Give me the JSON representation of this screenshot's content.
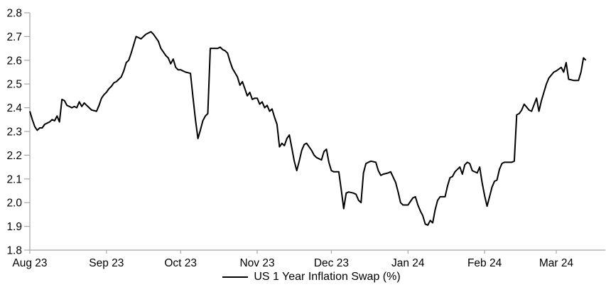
{
  "chart_data": {
    "type": "line",
    "title": "",
    "legend": {
      "position": "bottom",
      "label": "US 1 Year Inflation Swap (%)"
    },
    "x_ticks": [
      "Aug 23",
      "Sep 23",
      "Oct 23",
      "Nov 23",
      "Dec 23",
      "Jan 24",
      "Feb 24",
      "Mar 24"
    ],
    "x_tick_dates": [
      "2023-08-01",
      "2023-09-01",
      "2023-10-01",
      "2023-11-01",
      "2023-12-01",
      "2024-01-01",
      "2024-02-01",
      "2024-03-01"
    ],
    "y_tick_labels": [
      "1.8",
      "1.9",
      "2.0",
      "2.1",
      "2.2",
      "2.3",
      "2.4",
      "2.5",
      "2.6",
      "2.7",
      "2.8"
    ],
    "ylim": [
      1.8,
      2.8
    ],
    "grid": false,
    "background_color": "#ffffff",
    "axis_color": "#a6a6a6",
    "text_color": "#000000",
    "series": [
      {
        "name": "US 1 Year Inflation Swap (%)",
        "color": "#000000",
        "points": [
          [
            "2023-08-01",
            2.385
          ],
          [
            "2023-08-02",
            2.35
          ],
          [
            "2023-08-03",
            2.32
          ],
          [
            "2023-08-04",
            2.305
          ],
          [
            "2023-08-05",
            2.315
          ],
          [
            "2023-08-06",
            2.315
          ],
          [
            "2023-08-07",
            2.33
          ],
          [
            "2023-08-09",
            2.34
          ],
          [
            "2023-08-10",
            2.35
          ],
          [
            "2023-08-11",
            2.345
          ],
          [
            "2023-08-12",
            2.365
          ],
          [
            "2023-08-13",
            2.34
          ],
          [
            "2023-08-14",
            2.435
          ],
          [
            "2023-08-15",
            2.43
          ],
          [
            "2023-08-16",
            2.41
          ],
          [
            "2023-08-17",
            2.405
          ],
          [
            "2023-08-18",
            2.4
          ],
          [
            "2023-08-19",
            2.405
          ],
          [
            "2023-08-20",
            2.4
          ],
          [
            "2023-08-21",
            2.425
          ],
          [
            "2023-08-22",
            2.405
          ],
          [
            "2023-08-23",
            2.42
          ],
          [
            "2023-08-24",
            2.41
          ],
          [
            "2023-08-25",
            2.4
          ],
          [
            "2023-08-26",
            2.39
          ],
          [
            "2023-08-28",
            2.385
          ],
          [
            "2023-08-29",
            2.41
          ],
          [
            "2023-08-30",
            2.44
          ],
          [
            "2023-08-31",
            2.455
          ],
          [
            "2023-09-01",
            2.465
          ],
          [
            "2023-09-02",
            2.48
          ],
          [
            "2023-09-03",
            2.49
          ],
          [
            "2023-09-04",
            2.505
          ],
          [
            "2023-09-05",
            2.51
          ],
          [
            "2023-09-07",
            2.53
          ],
          [
            "2023-09-08",
            2.555
          ],
          [
            "2023-09-09",
            2.59
          ],
          [
            "2023-09-10",
            2.6
          ],
          [
            "2023-09-11",
            2.63
          ],
          [
            "2023-09-12",
            2.665
          ],
          [
            "2023-09-13",
            2.7
          ],
          [
            "2023-09-15",
            2.69
          ],
          [
            "2023-09-16",
            2.7
          ],
          [
            "2023-09-17",
            2.71
          ],
          [
            "2023-09-18",
            2.715
          ],
          [
            "2023-09-19",
            2.72
          ],
          [
            "2023-09-20",
            2.71
          ],
          [
            "2023-09-22",
            2.68
          ],
          [
            "2023-09-23",
            2.65
          ],
          [
            "2023-09-25",
            2.62
          ],
          [
            "2023-09-26",
            2.61
          ],
          [
            "2023-09-27",
            2.585
          ],
          [
            "2023-09-28",
            2.605
          ],
          [
            "2023-09-29",
            2.57
          ],
          [
            "2023-09-30",
            2.56
          ],
          [
            "2023-10-01",
            2.56
          ],
          [
            "2023-10-03",
            2.55
          ],
          [
            "2023-10-05",
            2.545
          ],
          [
            "2023-10-06",
            2.445
          ],
          [
            "2023-10-07",
            2.35
          ],
          [
            "2023-10-08",
            2.27
          ],
          [
            "2023-10-09",
            2.305
          ],
          [
            "2023-10-10",
            2.345
          ],
          [
            "2023-10-11",
            2.365
          ],
          [
            "2023-10-12",
            2.375
          ],
          [
            "2023-10-13",
            2.65
          ],
          [
            "2023-10-16",
            2.65
          ],
          [
            "2023-10-17",
            2.655
          ],
          [
            "2023-10-18",
            2.645
          ],
          [
            "2023-10-19",
            2.64
          ],
          [
            "2023-10-20",
            2.63
          ],
          [
            "2023-10-21",
            2.595
          ],
          [
            "2023-10-22",
            2.565
          ],
          [
            "2023-10-24",
            2.53
          ],
          [
            "2023-10-25",
            2.495
          ],
          [
            "2023-10-26",
            2.51
          ],
          [
            "2023-10-27",
            2.48
          ],
          [
            "2023-10-28",
            2.45
          ],
          [
            "2023-10-29",
            2.465
          ],
          [
            "2023-10-30",
            2.435
          ],
          [
            "2023-10-31",
            2.44
          ],
          [
            "2023-11-01",
            2.44
          ],
          [
            "2023-11-02",
            2.415
          ],
          [
            "2023-11-03",
            2.425
          ],
          [
            "2023-11-04",
            2.4
          ],
          [
            "2023-11-05",
            2.41
          ],
          [
            "2023-11-06",
            2.385
          ],
          [
            "2023-11-07",
            2.395
          ],
          [
            "2023-11-08",
            2.36
          ],
          [
            "2023-11-09",
            2.33
          ],
          [
            "2023-11-10",
            2.235
          ],
          [
            "2023-11-11",
            2.25
          ],
          [
            "2023-11-12",
            2.24
          ],
          [
            "2023-11-13",
            2.27
          ],
          [
            "2023-11-14",
            2.285
          ],
          [
            "2023-11-15",
            2.23
          ],
          [
            "2023-11-16",
            2.175
          ],
          [
            "2023-11-17",
            2.135
          ],
          [
            "2023-11-18",
            2.175
          ],
          [
            "2023-11-19",
            2.22
          ],
          [
            "2023-11-20",
            2.245
          ],
          [
            "2023-11-21",
            2.25
          ],
          [
            "2023-11-23",
            2.22
          ],
          [
            "2023-11-24",
            2.2
          ],
          [
            "2023-11-25",
            2.19
          ],
          [
            "2023-11-27",
            2.18
          ],
          [
            "2023-11-28",
            2.215
          ],
          [
            "2023-11-29",
            2.225
          ],
          [
            "2023-11-30",
            2.17
          ],
          [
            "2023-12-01",
            2.135
          ],
          [
            "2023-12-02",
            2.13
          ],
          [
            "2023-12-04",
            2.13
          ],
          [
            "2023-12-05",
            2.055
          ],
          [
            "2023-12-06",
            1.975
          ],
          [
            "2023-12-07",
            2.04
          ],
          [
            "2023-12-08",
            2.045
          ],
          [
            "2023-12-10",
            2.04
          ],
          [
            "2023-12-11",
            2.035
          ],
          [
            "2023-12-12",
            2.01
          ],
          [
            "2023-12-13",
            2.0
          ],
          [
            "2023-12-14",
            2.125
          ],
          [
            "2023-12-15",
            2.165
          ],
          [
            "2023-12-16",
            2.17
          ],
          [
            "2023-12-17",
            2.175
          ],
          [
            "2023-12-19",
            2.17
          ],
          [
            "2023-12-20",
            2.135
          ],
          [
            "2023-12-21",
            2.115
          ],
          [
            "2023-12-22",
            2.12
          ],
          [
            "2023-12-24",
            2.125
          ],
          [
            "2023-12-25",
            2.13
          ],
          [
            "2023-12-27",
            2.085
          ],
          [
            "2023-12-28",
            2.045
          ],
          [
            "2023-12-29",
            2.0
          ],
          [
            "2023-12-30",
            1.99
          ],
          [
            "2024-01-01",
            1.99
          ],
          [
            "2024-01-03",
            2.02
          ],
          [
            "2024-01-04",
            2.025
          ],
          [
            "2024-01-05",
            1.99
          ],
          [
            "2024-01-06",
            1.965
          ],
          [
            "2024-01-07",
            1.945
          ],
          [
            "2024-01-08",
            1.91
          ],
          [
            "2024-01-09",
            1.905
          ],
          [
            "2024-01-10",
            1.925
          ],
          [
            "2024-01-11",
            1.915
          ],
          [
            "2024-01-12",
            1.97
          ],
          [
            "2024-01-13",
            2.01
          ],
          [
            "2024-01-14",
            2.025
          ],
          [
            "2024-01-16",
            2.025
          ],
          [
            "2024-01-17",
            2.07
          ],
          [
            "2024-01-18",
            2.105
          ],
          [
            "2024-01-19",
            2.11
          ],
          [
            "2024-01-20",
            2.13
          ],
          [
            "2024-01-21",
            2.14
          ],
          [
            "2024-01-22",
            2.15
          ],
          [
            "2024-01-23",
            2.12
          ],
          [
            "2024-01-24",
            2.16
          ],
          [
            "2024-01-25",
            2.17
          ],
          [
            "2024-01-26",
            2.165
          ],
          [
            "2024-01-27",
            2.135
          ],
          [
            "2024-01-29",
            2.125
          ],
          [
            "2024-01-30",
            2.15
          ],
          [
            "2024-01-31",
            2.085
          ],
          [
            "2024-02-01",
            2.03
          ],
          [
            "2024-02-02",
            1.985
          ],
          [
            "2024-02-03",
            2.025
          ],
          [
            "2024-02-04",
            2.065
          ],
          [
            "2024-02-05",
            2.09
          ],
          [
            "2024-02-06",
            2.095
          ],
          [
            "2024-02-07",
            2.14
          ],
          [
            "2024-02-08",
            2.165
          ],
          [
            "2024-02-09",
            2.17
          ],
          [
            "2024-02-12",
            2.17
          ],
          [
            "2024-02-13",
            2.175
          ],
          [
            "2024-02-14",
            2.37
          ],
          [
            "2024-02-15",
            2.375
          ],
          [
            "2024-02-16",
            2.39
          ],
          [
            "2024-02-17",
            2.415
          ],
          [
            "2024-02-19",
            2.39
          ],
          [
            "2024-02-20",
            2.385
          ],
          [
            "2024-02-22",
            2.44
          ],
          [
            "2024-02-23",
            2.385
          ],
          [
            "2024-02-24",
            2.43
          ],
          [
            "2024-02-26",
            2.5
          ],
          [
            "2024-02-27",
            2.525
          ],
          [
            "2024-02-29",
            2.55
          ],
          [
            "2024-03-01",
            2.555
          ],
          [
            "2024-03-03",
            2.57
          ],
          [
            "2024-03-04",
            2.55
          ],
          [
            "2024-03-05",
            2.59
          ],
          [
            "2024-03-06",
            2.52
          ],
          [
            "2024-03-08",
            2.515
          ],
          [
            "2024-03-10",
            2.515
          ],
          [
            "2024-03-11",
            2.55
          ],
          [
            "2024-03-12",
            2.61
          ],
          [
            "2024-03-13",
            2.6
          ]
        ]
      }
    ]
  }
}
